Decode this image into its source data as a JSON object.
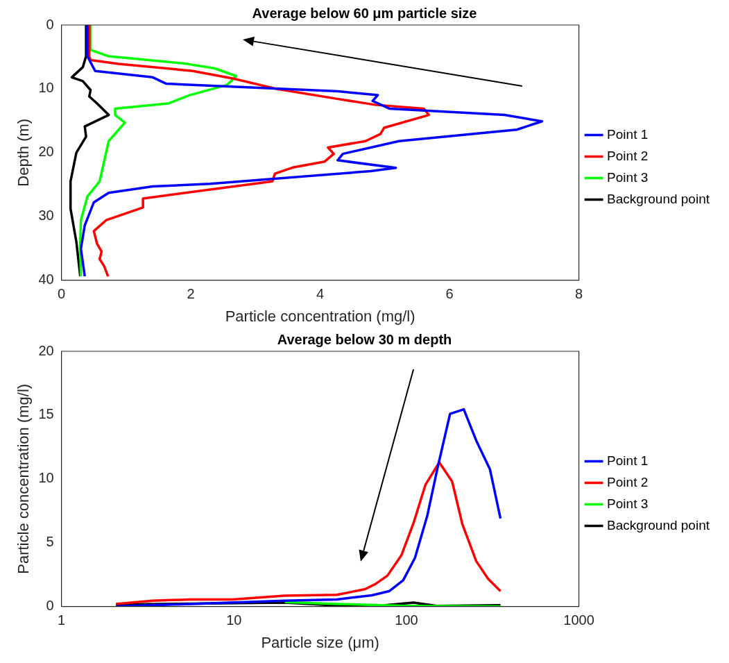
{
  "chart_data": [
    {
      "type": "line",
      "title": "Average below 60 μm particle size",
      "xlabel": "Particle concentration (mg/l)",
      "ylabel": "Depth (m)",
      "xlim": [
        0,
        8
      ],
      "xticks": [
        0,
        2,
        4,
        6,
        8
      ],
      "ylim": [
        40,
        0
      ],
      "yticks": [
        0,
        10,
        20,
        30,
        40
      ],
      "grid": false,
      "legend": "right",
      "marker": "none",
      "line_style": "solid",
      "series": [
        {
          "name": "Point 1",
          "color": "#0000ff",
          "x": [
            0.4,
            0.4,
            0.52,
            1.41,
            1.62,
            4.28,
            4.89,
            4.81,
            5.07,
            6.85,
            7.43,
            7.04,
            5.22,
            4.35,
            4.27,
            5.17,
            4.78,
            2.3,
            1.41,
            0.73,
            0.5,
            0.36,
            0.3,
            0.36
          ],
          "values": [
            0,
            4.9,
            7.2,
            8.2,
            9.2,
            10.4,
            11,
            11.9,
            13.1,
            14.1,
            15.1,
            16.4,
            18.2,
            20.2,
            21.2,
            22.4,
            22.9,
            24.9,
            25.3,
            26.3,
            27.8,
            31.4,
            35.1,
            39.4
          ]
        },
        {
          "name": "Point 2",
          "color": "#ff0000",
          "x": [
            0.43,
            0.43,
            0.45,
            0.88,
            2.03,
            2.66,
            3.32,
            4.28,
            4.84,
            5.6,
            5.68,
            4.99,
            4.93,
            4.7,
            4.12,
            4.21,
            4.07,
            3.59,
            3.3,
            3.26,
            1.26,
            1.26,
            0.69,
            0.5,
            0.55,
            0.62,
            0.59,
            0.66,
            0.72
          ],
          "values": [
            0,
            4.9,
            5.5,
            6.1,
            7.2,
            8.4,
            10,
            11.6,
            12.5,
            13.1,
            14.1,
            16.1,
            17.1,
            18.2,
            19.2,
            20.2,
            21.4,
            22.3,
            23.3,
            24.5,
            27.2,
            28.6,
            30.6,
            32.3,
            34.3,
            35.5,
            36.7,
            37.8,
            39.4
          ]
        },
        {
          "name": "Point 3",
          "color": "#00ff00",
          "x": [
            0.45,
            0.45,
            0.73,
            1.88,
            2.37,
            2.7,
            2.56,
            1.98,
            1.65,
            0.83,
            0.83,
            0.98,
            0.73,
            0.59,
            0.4,
            0.3,
            0.29,
            0.3
          ],
          "values": [
            0,
            3.9,
            4.9,
            6,
            6.8,
            8,
            9.4,
            11,
            12.3,
            13.1,
            14.1,
            15.3,
            18.2,
            24.5,
            26.9,
            30.6,
            34.3,
            39.4
          ]
        },
        {
          "name": "Background point",
          "color": "#000000",
          "x": [
            0.38,
            0.38,
            0.33,
            0.16,
            0.33,
            0.45,
            0.43,
            0.55,
            0.73,
            0.36,
            0.38,
            0.23,
            0.14,
            0.14,
            0.23,
            0.29
          ],
          "values": [
            0,
            4.9,
            6.6,
            8.2,
            8.8,
            10.2,
            11.2,
            12.3,
            14.1,
            15.9,
            17.5,
            20,
            24.5,
            28.8,
            34,
            39.4
          ]
        }
      ]
    },
    {
      "type": "line",
      "title": "Average below 30 m depth",
      "xlabel": "Particle size (μm)",
      "ylabel": "Particle concentration (mg/l)",
      "log": "x",
      "xlim": [
        1,
        1000
      ],
      "xticks": [
        1,
        10,
        100,
        1000
      ],
      "ylim": [
        0,
        20
      ],
      "yticks": [
        0,
        5,
        10,
        15,
        20
      ],
      "grid": false,
      "legend": "right",
      "marker": "none",
      "line_style": "solid",
      "series": [
        {
          "name": "Point 1",
          "color": "#0000ff",
          "x": [
            2.07,
            19.7,
            39.5,
            63,
            79.4,
            95.7,
            112,
            132,
            152,
            179,
            215,
            254,
            305,
            351
          ],
          "values": [
            0,
            0.45,
            0.55,
            0.88,
            1.2,
            2.05,
            3.8,
            7.1,
            10.95,
            15.1,
            15.45,
            13,
            10.75,
            6.9
          ]
        },
        {
          "name": "Point 2",
          "color": "#ff0000",
          "x": [
            2.07,
            3.37,
            5.6,
            9.8,
            19.7,
            39.5,
            57.4,
            66,
            77.6,
            93.4,
            110,
            129,
            155,
            184,
            211,
            254,
            298,
            351
          ],
          "values": [
            0.2,
            0.45,
            0.55,
            0.55,
            0.85,
            0.92,
            1.35,
            1.75,
            2.42,
            4,
            6.55,
            9.55,
            11.3,
            9.8,
            6.45,
            3.55,
            2.15,
            1.2
          ]
        },
        {
          "name": "Point 3",
          "color": "#00ff00",
          "x": [
            19.7,
            39.5,
            100,
            351
          ],
          "values": [
            0.35,
            0.2,
            0.05,
            0
          ]
        },
        {
          "name": "Background point",
          "color": "#000000",
          "x": [
            2.07,
            19.7,
            43.6,
            63,
            110,
            150,
            351
          ],
          "values": [
            0.15,
            0.3,
            0.05,
            0,
            0.3,
            0.05,
            0.1
          ]
        }
      ]
    }
  ]
}
